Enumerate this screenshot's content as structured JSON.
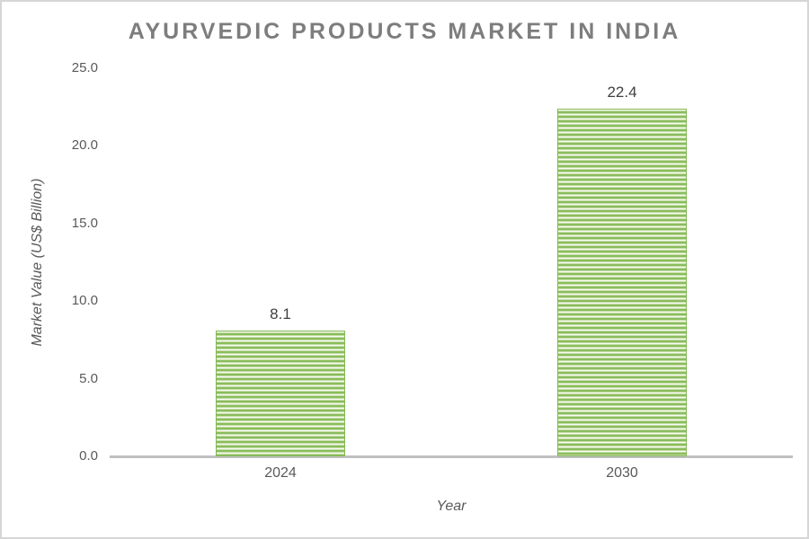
{
  "window": {
    "background": "#ffffff",
    "frame_border_color": "#d6d6d6"
  },
  "chart_data": {
    "type": "bar",
    "title": "AYURVEDIC PRODUCTS MARKET IN INDIA",
    "categories": [
      "2024",
      "2030"
    ],
    "values": [
      8.1,
      22.4
    ],
    "data_labels": [
      "8.1",
      "22.4"
    ],
    "xlabel": "Year",
    "ylabel": "Market Value (US$ Billion)",
    "ylim": [
      0,
      25
    ],
    "yticks": [
      0,
      5,
      10,
      15,
      20,
      25
    ],
    "ytick_labels": [
      "0.0",
      "5.0",
      "10.0",
      "15.0",
      "20.0",
      "25.0"
    ],
    "grid": false,
    "legend": false,
    "bar_pattern": "light-horizontal-stripes",
    "colors": {
      "bar_fill_base": "#8abd5e",
      "bar_stripe_light": "#c5dda6",
      "bar_stripe_white": "#f7fbf2",
      "bar_border": "#83b757",
      "title_text": "#7d7d7d",
      "axis_text": "#595959",
      "data_label_text": "#404040",
      "axis_line": "#c0c0c0"
    }
  }
}
